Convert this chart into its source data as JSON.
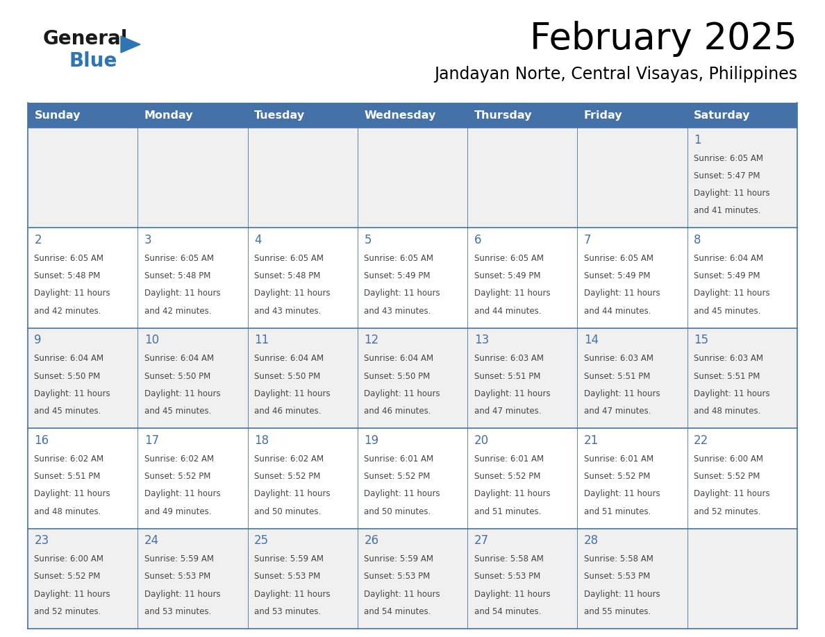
{
  "title": "February 2025",
  "subtitle": "Jandayan Norte, Central Visayas, Philippines",
  "days_of_week": [
    "Sunday",
    "Monday",
    "Tuesday",
    "Wednesday",
    "Thursday",
    "Friday",
    "Saturday"
  ],
  "header_bg": "#4472a8",
  "header_text_color": "#ffffff",
  "cell_bg_odd": "#f0f0f0",
  "cell_bg_even": "#ffffff",
  "cell_border_color": "#4472a8",
  "day_number_color": "#4472a8",
  "text_color": "#444444",
  "logo_general_color": "#1a1a1a",
  "logo_blue_color": "#2e75b6",
  "triangle_color": "#2e75b6",
  "calendar_data": [
    [
      null,
      null,
      null,
      null,
      null,
      null,
      {
        "day": 1,
        "sunrise": "6:05 AM",
        "sunset": "5:47 PM",
        "daylight_hours": "11 hours",
        "daylight_mins": "and 41 minutes."
      }
    ],
    [
      {
        "day": 2,
        "sunrise": "6:05 AM",
        "sunset": "5:48 PM",
        "daylight_hours": "11 hours",
        "daylight_mins": "and 42 minutes."
      },
      {
        "day": 3,
        "sunrise": "6:05 AM",
        "sunset": "5:48 PM",
        "daylight_hours": "11 hours",
        "daylight_mins": "and 42 minutes."
      },
      {
        "day": 4,
        "sunrise": "6:05 AM",
        "sunset": "5:48 PM",
        "daylight_hours": "11 hours",
        "daylight_mins": "and 43 minutes."
      },
      {
        "day": 5,
        "sunrise": "6:05 AM",
        "sunset": "5:49 PM",
        "daylight_hours": "11 hours",
        "daylight_mins": "and 43 minutes."
      },
      {
        "day": 6,
        "sunrise": "6:05 AM",
        "sunset": "5:49 PM",
        "daylight_hours": "11 hours",
        "daylight_mins": "and 44 minutes."
      },
      {
        "day": 7,
        "sunrise": "6:05 AM",
        "sunset": "5:49 PM",
        "daylight_hours": "11 hours",
        "daylight_mins": "and 44 minutes."
      },
      {
        "day": 8,
        "sunrise": "6:04 AM",
        "sunset": "5:49 PM",
        "daylight_hours": "11 hours",
        "daylight_mins": "and 45 minutes."
      }
    ],
    [
      {
        "day": 9,
        "sunrise": "6:04 AM",
        "sunset": "5:50 PM",
        "daylight_hours": "11 hours",
        "daylight_mins": "and 45 minutes."
      },
      {
        "day": 10,
        "sunrise": "6:04 AM",
        "sunset": "5:50 PM",
        "daylight_hours": "11 hours",
        "daylight_mins": "and 45 minutes."
      },
      {
        "day": 11,
        "sunrise": "6:04 AM",
        "sunset": "5:50 PM",
        "daylight_hours": "11 hours",
        "daylight_mins": "and 46 minutes."
      },
      {
        "day": 12,
        "sunrise": "6:04 AM",
        "sunset": "5:50 PM",
        "daylight_hours": "11 hours",
        "daylight_mins": "and 46 minutes."
      },
      {
        "day": 13,
        "sunrise": "6:03 AM",
        "sunset": "5:51 PM",
        "daylight_hours": "11 hours",
        "daylight_mins": "and 47 minutes."
      },
      {
        "day": 14,
        "sunrise": "6:03 AM",
        "sunset": "5:51 PM",
        "daylight_hours": "11 hours",
        "daylight_mins": "and 47 minutes."
      },
      {
        "day": 15,
        "sunrise": "6:03 AM",
        "sunset": "5:51 PM",
        "daylight_hours": "11 hours",
        "daylight_mins": "and 48 minutes."
      }
    ],
    [
      {
        "day": 16,
        "sunrise": "6:02 AM",
        "sunset": "5:51 PM",
        "daylight_hours": "11 hours",
        "daylight_mins": "and 48 minutes."
      },
      {
        "day": 17,
        "sunrise": "6:02 AM",
        "sunset": "5:52 PM",
        "daylight_hours": "11 hours",
        "daylight_mins": "and 49 minutes."
      },
      {
        "day": 18,
        "sunrise": "6:02 AM",
        "sunset": "5:52 PM",
        "daylight_hours": "11 hours",
        "daylight_mins": "and 50 minutes."
      },
      {
        "day": 19,
        "sunrise": "6:01 AM",
        "sunset": "5:52 PM",
        "daylight_hours": "11 hours",
        "daylight_mins": "and 50 minutes."
      },
      {
        "day": 20,
        "sunrise": "6:01 AM",
        "sunset": "5:52 PM",
        "daylight_hours": "11 hours",
        "daylight_mins": "and 51 minutes."
      },
      {
        "day": 21,
        "sunrise": "6:01 AM",
        "sunset": "5:52 PM",
        "daylight_hours": "11 hours",
        "daylight_mins": "and 51 minutes."
      },
      {
        "day": 22,
        "sunrise": "6:00 AM",
        "sunset": "5:52 PM",
        "daylight_hours": "11 hours",
        "daylight_mins": "and 52 minutes."
      }
    ],
    [
      {
        "day": 23,
        "sunrise": "6:00 AM",
        "sunset": "5:52 PM",
        "daylight_hours": "11 hours",
        "daylight_mins": "and 52 minutes."
      },
      {
        "day": 24,
        "sunrise": "5:59 AM",
        "sunset": "5:53 PM",
        "daylight_hours": "11 hours",
        "daylight_mins": "and 53 minutes."
      },
      {
        "day": 25,
        "sunrise": "5:59 AM",
        "sunset": "5:53 PM",
        "daylight_hours": "11 hours",
        "daylight_mins": "and 53 minutes."
      },
      {
        "day": 26,
        "sunrise": "5:59 AM",
        "sunset": "5:53 PM",
        "daylight_hours": "11 hours",
        "daylight_mins": "and 54 minutes."
      },
      {
        "day": 27,
        "sunrise": "5:58 AM",
        "sunset": "5:53 PM",
        "daylight_hours": "11 hours",
        "daylight_mins": "and 54 minutes."
      },
      {
        "day": 28,
        "sunrise": "5:58 AM",
        "sunset": "5:53 PM",
        "daylight_hours": "11 hours",
        "daylight_mins": "and 55 minutes."
      },
      null
    ]
  ]
}
